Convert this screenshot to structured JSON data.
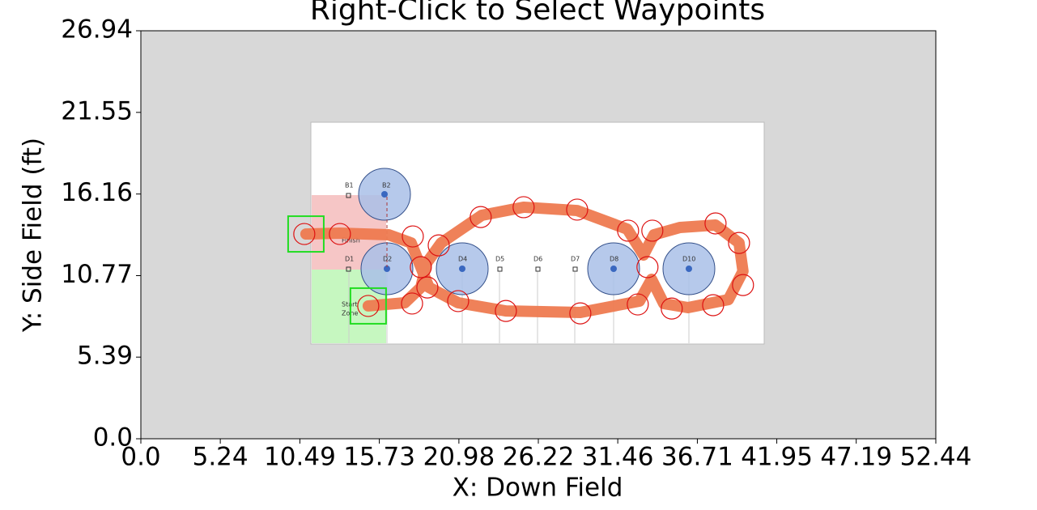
{
  "chart_data": {
    "type": "path",
    "title": "Right-Click to Select Waypoints",
    "xlabel": "X: Down Field",
    "ylabel": "Y: Side Field (ft)",
    "xlim": [
      0,
      52.44
    ],
    "ylim": [
      0,
      26.94
    ],
    "xticks": [
      {
        "value": 0,
        "label": "0.0"
      },
      5.24,
      10.49,
      15.73,
      20.98,
      26.22,
      31.46,
      36.71,
      41.95,
      47.19,
      52.44
    ],
    "yticks": [
      {
        "value": 0,
        "label": "0.0"
      },
      5.39,
      10.77,
      16.16,
      21.55,
      26.94
    ],
    "path_color": "#ee7a50",
    "waypoint_color": "#dd1111",
    "path": {
      "x": [
        15.0,
        17.41,
        18.47,
        18.85,
        19.81,
        22.48,
        25.25,
        28.78,
        32.09,
        33.16,
        33.85,
        35.56,
        37.91,
        39.46,
        39.72,
        38.76,
        36.09,
        34.49,
        33.69,
        32.89,
        28.99,
        24.08,
        20.93,
        19.01,
        18.47,
        17.83,
        16.34,
        13.13,
        10.89
      ],
      "y": [
        8.77,
        8.98,
        9.99,
        11.6,
        12.93,
        14.75,
        15.29,
        15.07,
        13.84,
        12.13,
        13.47,
        13.95,
        14.11,
        12.93,
        11.06,
        9.19,
        8.66,
        8.93,
        10.53,
        9.09,
        8.34,
        8.44,
        8.98,
        9.99,
        11.33,
        12.93,
        13.47,
        13.58,
        13.52
      ]
    },
    "waypoints": {
      "x": [
        10.78,
        13.13,
        17.94,
        19.65,
        18.47,
        18.9,
        17.89,
        15.0,
        20.93,
        24.08,
        28.99,
        32.78,
        33.42,
        33.74,
        32.14,
        28.78,
        25.25,
        22.42,
        35.02,
        37.75,
        39.72,
        39.46,
        37.91
      ],
      "y": [
        13.52,
        13.52,
        13.36,
        12.77,
        11.33,
        9.99,
        8.93,
        8.77,
        9.09,
        8.44,
        8.28,
        8.87,
        11.33,
        13.74,
        13.74,
        15.13,
        15.29,
        14.64,
        8.6,
        8.82,
        10.15,
        12.93,
        14.22
      ]
    },
    "field_labels": [
      "B1",
      "B2",
      "D1",
      "D2",
      "D4",
      "D5",
      "D6",
      "D7",
      "D8",
      "D10",
      "Finish",
      "Start",
      "Zone"
    ]
  }
}
